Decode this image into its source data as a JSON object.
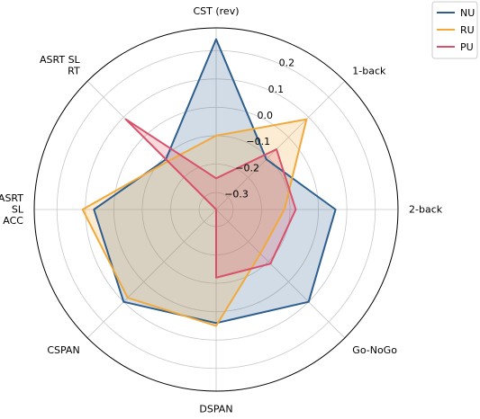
{
  "chart_data": {
    "type": "radar",
    "axes": [
      "CST (rev)",
      "1-back",
      "2-back",
      "Go-NoGo",
      "DSPAN",
      "CSPAN",
      "ASRT\nSL\nACC",
      "ASRT SL\nRT"
    ],
    "radial_ticks": [
      -0.3,
      -0.2,
      -0.1,
      0.0,
      0.1,
      0.2
    ],
    "radial_tick_labels": [
      "−0.3",
      "−0.2",
      "−0.1",
      "0.0",
      "0.1",
      "0.2"
    ],
    "rlim": [
      -0.36,
      0.28
    ],
    "grid": true,
    "legend_position": "top-right",
    "series": [
      {
        "name": "NU",
        "color": "#2e5e8e",
        "values": [
          0.24,
          -0.11,
          0.06,
          0.1,
          0.04,
          0.1,
          0.07,
          -0.11
        ]
      },
      {
        "name": "RU",
        "color": "#f2a93b",
        "values": [
          -0.1,
          0.09,
          -0.12,
          -0.14,
          0.05,
          0.08,
          0.11,
          -0.12
        ]
      },
      {
        "name": "PU",
        "color": "#d9506a",
        "values": [
          -0.25,
          -0.06,
          -0.08,
          -0.09,
          -0.12,
          -0.36,
          -0.36,
          0.09
        ]
      }
    ]
  }
}
